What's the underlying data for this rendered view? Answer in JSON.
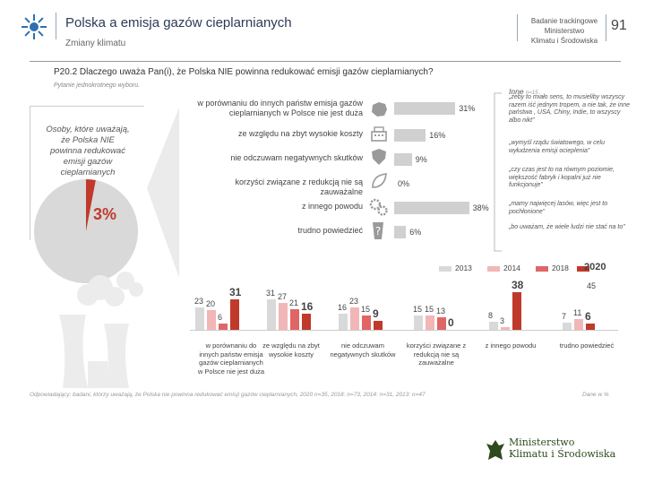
{
  "header": {
    "title": "Polska a emisja gazów cieplarnianych",
    "subtitle": "Zmiany klimatu",
    "sponsor_lines": [
      "Badanie trackingowe",
      "Ministerstwo",
      "Klimatu i Środowiska"
    ],
    "page_number": "91"
  },
  "question": {
    "text": "P20.2 Dlaczego uważa Pan(i), że Polska NIE powinna redukować emisji gazów cieplarnianych?",
    "note": "Pytanie jednokrotnego wyboru."
  },
  "pie": {
    "label": "Osoby, które uważają, że Polska NIE powinna redukować emisji gazów cieplarnianych",
    "percent_label": "3%",
    "percent": 3
  },
  "colors": {
    "bar_grey": "#d0d0d0",
    "c2013": "#d9d9d9",
    "c2014": "#f2b6b6",
    "c2018": "#e06666",
    "c2020": "#c0392b",
    "pie_main": "#d9d9d9",
    "pie_slice": "#c0392b",
    "icon_grey": "#9a9a9a"
  },
  "chart_data": [
    {
      "type": "bar",
      "title": "2020",
      "categories": [
        "w porównaniu do innych państw emisja gazów cieplarnianych w Polsce nie jest duża",
        "ze względu na zbyt wysokie koszty",
        "nie odczuwam negatywnych skutków",
        "korzyści związane z redukcją nie są zauważalne",
        "z innego powodu",
        "trudno powiedzieć"
      ],
      "values": [
        31,
        16,
        9,
        0,
        38,
        6
      ],
      "value_labels": [
        "31%",
        "16%",
        "9%",
        "0%",
        "38%",
        "6%"
      ],
      "xlim": [
        0,
        100
      ]
    },
    {
      "type": "bar",
      "title": "",
      "categories": [
        "w porównaniu do innych państw emisja gazów cieplarnianych w Polsce nie jest duża",
        "ze względu na zbyt wysokie koszty",
        "nie odczuwam negatywnych skutków",
        "korzyści związane z redukcją nie są zauważalne",
        "z innego powodu",
        "trudno powiedzieć"
      ],
      "series": [
        {
          "name": "2013",
          "values": [
            23,
            31,
            16,
            15,
            8,
            7
          ]
        },
        {
          "name": "2014",
          "values": [
            20,
            27,
            23,
            15,
            3,
            11
          ]
        },
        {
          "name": "2018",
          "values": [
            6,
            21,
            15,
            13,
            null,
            null
          ]
        },
        {
          "name": "2020",
          "values": [
            31,
            16,
            9,
            0,
            38,
            6
          ]
        }
      ],
      "value_labels": [
        [
          "23",
          "20",
          "6",
          "31"
        ],
        [
          "31",
          "27",
          "21",
          "16"
        ],
        [
          "16",
          "23",
          "15",
          "9"
        ],
        [
          "15",
          "15",
          "13",
          "0"
        ],
        [
          "8",
          "3",
          "",
          "38"
        ],
        [
          "7",
          "11",
          "",
          "6"
        ]
      ],
      "ylim": [
        0,
        45
      ],
      "axis_max_label": "45"
    }
  ],
  "inne": {
    "title": "Inne",
    "count": "n=15",
    "quotes": [
      "„żeby to miało sens, to musieliby wszyscy razem iść jednym tropem, a nie tak, że inne państwa , USA, Chiny, Indie, to wszyscy albo nikt”",
      "„wymyśl rządu światowego, w celu wyłudzenia emisji ocieplenia”",
      "„czy czas jest to na równym poziomie, większość fabryk i kopalni już nie funkcjonuje”",
      "„mamy najwięcej lasów, więc jest to pochłonione”",
      "„bo uważam, że wiele ludzi nie stać na to”"
    ]
  },
  "legend": [
    "2013",
    "2014",
    "2018",
    "2020"
  ],
  "bottom_labels": [
    "w porównaniu do innych państw emisja gazów cieplarnianych w Polsce nie jest duża",
    "ze względu na zbyt wysokie koszty",
    "nie odczuwam negatywnych skutków",
    "korzyści związane z redukcją nie są zauważalne",
    "z innego powodu",
    "trudno powiedzieć"
  ],
  "footer": {
    "note": "Odpowiadający: badani, którzy uważają, że Polska nie powinna redukować emisji gazów cieplarnianych, 2020 n=35, 2018: n=73, 2014: n=31, 2013: n=47",
    "source": "Dane w %",
    "logo_lines": [
      "Ministerstwo",
      "Klimatu i Środowiska"
    ]
  }
}
